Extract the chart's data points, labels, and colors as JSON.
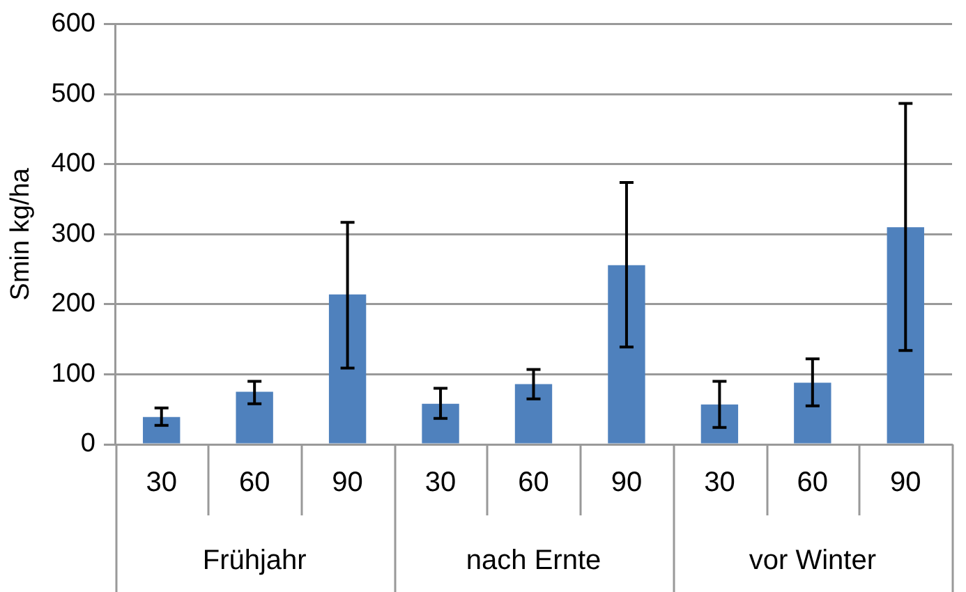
{
  "chart_data": {
    "type": "bar",
    "ylabel": "Smin kg/ha",
    "categories": [
      "30",
      "60",
      "90",
      "30",
      "60",
      "90",
      "30",
      "60",
      "90"
    ],
    "values": [
      39,
      75,
      214,
      58,
      86,
      256,
      57,
      88,
      310
    ],
    "errors": [
      [
        27,
        52
      ],
      [
        58,
        90
      ],
      [
        109,
        317
      ],
      [
        37,
        80
      ],
      [
        65,
        107
      ],
      [
        139,
        374
      ],
      [
        24,
        90
      ],
      [
        55,
        122
      ],
      [
        134,
        487
      ]
    ],
    "color": "#4f81bd",
    "annotations": [
      "Frühjahr",
      "nach Ernte",
      "vor Winter"
    ],
    "ylim": [
      0,
      600
    ],
    "yticks": [
      0,
      100,
      200,
      300,
      400,
      500,
      600
    ],
    "grid": "y",
    "legend": false
  }
}
